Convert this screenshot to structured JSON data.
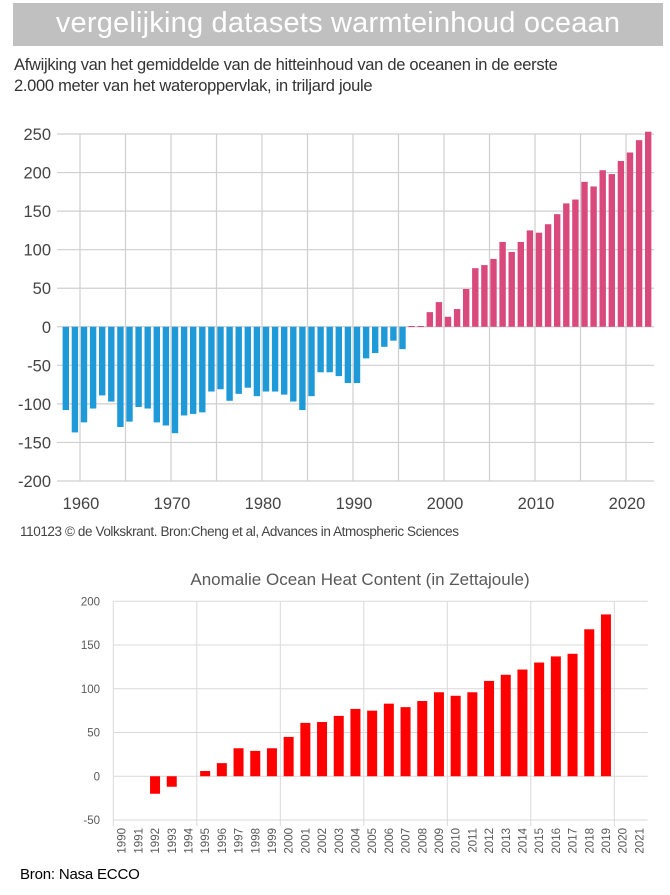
{
  "header": {
    "title": "vergelijking datasets warmteinhoud oceaan",
    "subtitle_line1": "Afwijking van het gemiddelde van de hitteinhoud van de oceanen in de eerste",
    "subtitle_line2": "2.000 meter van het wateroppervlak, in triljard joule"
  },
  "colors": {
    "banner": "#c0c0c0",
    "negative_bar": "#1f9ad8",
    "positive_bar": "#d9497b",
    "ecco_bar": "#ff0000",
    "gridline": "#cccccc"
  },
  "chart_data": [
    {
      "type": "bar",
      "title": "Afwijking van het gemiddelde van de hitteinhoud van de oceanen in de eerste 2.000 meter van het wateroppervlak, in triljard joule",
      "xlabel": "",
      "ylabel": "",
      "ylim": [
        -200,
        250
      ],
      "yticks": [
        250,
        200,
        150,
        100,
        50,
        0,
        -50,
        -100,
        -150,
        -200
      ],
      "ytick_labels": [
        "250",
        "200",
        "150",
        "100",
        "50",
        "0",
        "-50",
        "-100",
        "-150",
        "-200"
      ],
      "xticks": [
        1960,
        1970,
        1980,
        1990,
        2000,
        2010,
        2020
      ],
      "xtick_labels": [
        "1960",
        "1970",
        "1980",
        "1990",
        "2000",
        "2010",
        "2020"
      ],
      "grid": true,
      "vertical_grid_every_years": 5,
      "source": "110123 © de Volkskrant. Bron:Cheng et al, Advances in Atmospheric Sciences",
      "x": [
        1958,
        1959,
        1960,
        1961,
        1962,
        1963,
        1964,
        1965,
        1966,
        1967,
        1968,
        1969,
        1970,
        1971,
        1972,
        1973,
        1974,
        1975,
        1976,
        1977,
        1978,
        1979,
        1980,
        1981,
        1982,
        1983,
        1984,
        1985,
        1986,
        1987,
        1988,
        1989,
        1990,
        1991,
        1992,
        1993,
        1994,
        1995,
        1996,
        1997,
        1998,
        1999,
        2000,
        2001,
        2002,
        2003,
        2004,
        2005,
        2006,
        2007,
        2008,
        2009,
        2010,
        2011,
        2012,
        2013,
        2014,
        2015,
        2016,
        2017,
        2018,
        2019,
        2020,
        2021,
        2022
      ],
      "values": [
        -108,
        -137,
        -124,
        -106,
        -89,
        -97,
        -130,
        -123,
        -104,
        -106,
        -124,
        -128,
        -138,
        -115,
        -113,
        -111,
        -84,
        -81,
        -96,
        -87,
        -79,
        -90,
        -84,
        -84,
        -88,
        -97,
        -108,
        -90,
        -59,
        -59,
        -64,
        -73,
        -73,
        -41,
        -34,
        -26,
        -18,
        -29,
        1,
        1,
        19,
        32,
        13,
        23,
        49,
        76,
        80,
        88,
        110,
        97,
        110,
        125,
        122,
        133,
        146,
        160,
        165,
        188,
        182,
        203,
        198,
        215,
        226,
        242,
        253
      ]
    },
    {
      "type": "bar",
      "title": "Anomalie Ocean Heat Content (in Zettajoule)",
      "xlabel": "",
      "ylabel": "",
      "ylim": [
        -50,
        200
      ],
      "yticks": [
        200,
        150,
        100,
        50,
        0,
        -50
      ],
      "ytick_labels": [
        "200",
        "150",
        "100",
        "50",
        "0",
        "-50"
      ],
      "grid": true,
      "source": "Bron: Nasa ECCO",
      "categories": [
        "1990",
        "1991",
        "1992",
        "1993",
        "1994",
        "1995",
        "1996",
        "1997",
        "1998",
        "1999",
        "2000",
        "2001",
        "2002",
        "2003",
        "2004",
        "2005",
        "2006",
        "2007",
        "2008",
        "2009",
        "2010",
        "2011",
        "2012",
        "2013",
        "2014",
        "2015",
        "2016",
        "2017",
        "2018",
        "2019",
        "2020",
        "2021"
      ],
      "values": [
        null,
        null,
        -20,
        -12,
        null,
        6,
        15,
        32,
        29,
        32,
        45,
        61,
        62,
        69,
        77,
        75,
        83,
        79,
        86,
        96,
        92,
        96,
        109,
        116,
        122,
        130,
        137,
        140,
        168,
        185,
        null,
        null
      ]
    }
  ]
}
